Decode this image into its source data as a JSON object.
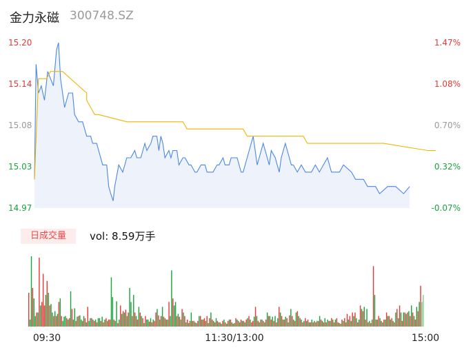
{
  "header": {
    "stock_name": "金力永磁",
    "stock_code": "300748.SZ"
  },
  "volume_panel": {
    "tag_label": "日成交量",
    "volume_text": "vol: 8.59万手"
  },
  "colors": {
    "price_line": "#4a86e8",
    "avg_line": "#f0b400",
    "up": "#e53935",
    "down": "#1aa33c",
    "neutral": "#999999",
    "area_fill": "#eef3fb"
  },
  "chart_data": [
    {
      "type": "line",
      "title": "",
      "y_left_ticks": [
        "15.20",
        "15.14",
        "15.08",
        "15.03",
        "14.97"
      ],
      "y_right_ticks": [
        "1.47%",
        "1.08%",
        "0.70%",
        "0.32%",
        "-0.07%"
      ],
      "x_ticks": [
        "09:30",
        "11:30/13:00",
        "15:00"
      ],
      "ylim": [
        14.97,
        15.2
      ],
      "series": [
        {
          "values": [
            15.01,
            15.17,
            15.13,
            15.14,
            15.12,
            15.16,
            15.15,
            15.14,
            15.19,
            15.2,
            15.15,
            15.11,
            15.13,
            15.13,
            15.1,
            15.09,
            15.09,
            15.07,
            15.07,
            15.06,
            15.06,
            15.05,
            15.03,
            15.03,
            15.0,
            14.99,
            14.98,
            15.0,
            15.03,
            15.02,
            15.04,
            15.04,
            15.05,
            15.04,
            15.04,
            15.06,
            15.05,
            15.06,
            15.07,
            15.07,
            15.05,
            15.07,
            15.06,
            15.04,
            15.05,
            15.04,
            15.05,
            15.05,
            15.03,
            15.04,
            15.04,
            15.03,
            15.03,
            15.02,
            15.02,
            15.03,
            15.03,
            15.02,
            15.02,
            15.02,
            15.03,
            15.03,
            15.04,
            15.03,
            15.03,
            15.04,
            15.04,
            15.04,
            15.03,
            15.02,
            15.02,
            15.06,
            15.07,
            15.05,
            15.03,
            15.04,
            15.06,
            15.04,
            15.03,
            15.05,
            15.04,
            15.02,
            15.04,
            15.06,
            15.05,
            15.03,
            15.03,
            15.02,
            15.03,
            15.02,
            15.02,
            15.02,
            15.03,
            15.02,
            15.03,
            15.04,
            15.02,
            15.02,
            15.02,
            15.03,
            15.02,
            15.01,
            15.01,
            15.01,
            15.0,
            15.0,
            14.99,
            15.0,
            15.0,
            14.99,
            15.0
          ],
          "x_frac": [
            0,
            0.004,
            0.01,
            0.017,
            0.025,
            0.033,
            0.04,
            0.047,
            0.055,
            0.06,
            0.065,
            0.075,
            0.085,
            0.095,
            0.1,
            0.11,
            0.12,
            0.13,
            0.14,
            0.145,
            0.155,
            0.16,
            0.17,
            0.18,
            0.185,
            0.19,
            0.196,
            0.2,
            0.21,
            0.22,
            0.23,
            0.24,
            0.25,
            0.255,
            0.265,
            0.275,
            0.28,
            0.29,
            0.295,
            0.305,
            0.31,
            0.315,
            0.32,
            0.325,
            0.335,
            0.34,
            0.345,
            0.355,
            0.36,
            0.37,
            0.375,
            0.385,
            0.39,
            0.4,
            0.405,
            0.415,
            0.425,
            0.43,
            0.44,
            0.445,
            0.455,
            0.46,
            0.47,
            0.475,
            0.485,
            0.49,
            0.5,
            0.505,
            0.51,
            0.515,
            0.52,
            0.54,
            0.545,
            0.55,
            0.555,
            0.56,
            0.57,
            0.58,
            0.585,
            0.59,
            0.6,
            0.61,
            0.615,
            0.625,
            0.63,
            0.64,
            0.645,
            0.655,
            0.665,
            0.675,
            0.68,
            0.69,
            0.7,
            0.71,
            0.72,
            0.73,
            0.74,
            0.75,
            0.76,
            0.77,
            0.79,
            0.8,
            0.81,
            0.82,
            0.83,
            0.85,
            0.86,
            0.88,
            0.9,
            0.92,
            0.935
          ]
        },
        {
          "values": [
            15.01,
            15.15,
            15.15,
            15.16,
            15.16,
            15.14,
            15.13,
            15.12,
            15.11,
            15.1,
            15.1,
            15.09,
            15.09,
            15.09,
            15.08,
            15.08,
            15.07,
            15.07,
            15.07,
            15.06,
            15.06,
            15.06,
            15.05,
            15.05
          ],
          "x_frac": [
            0,
            0.01,
            0.03,
            0.04,
            0.07,
            0.11,
            0.13,
            0.13,
            0.14,
            0.15,
            0.16,
            0.23,
            0.24,
            0.37,
            0.38,
            0.52,
            0.53,
            0.61,
            0.67,
            0.68,
            0.86,
            0.87,
            0.98,
            1.0
          ]
        }
      ]
    },
    {
      "type": "bar",
      "title": "",
      "ylim": [
        0,
        100
      ],
      "values": [
        48,
        10,
        100,
        55,
        40,
        15,
        20,
        20,
        98,
        30,
        35,
        75,
        30,
        45,
        65,
        48,
        30,
        32,
        20,
        15,
        22,
        15,
        18,
        35,
        40,
        15,
        8,
        14,
        15,
        12,
        10,
        12,
        50,
        25,
        10,
        26,
        8,
        14,
        15,
        16,
        10,
        8,
        15,
        12,
        6,
        28,
        8,
        12,
        12,
        10,
        8,
        10,
        6,
        12,
        12,
        8,
        14,
        6,
        10,
        12,
        8,
        10,
        10,
        70,
        42,
        10,
        8,
        36,
        5,
        10,
        30,
        18,
        22,
        20,
        24,
        15,
        20,
        55,
        35,
        15,
        45,
        20,
        15,
        10,
        28,
        20,
        15,
        12,
        5,
        15,
        10,
        10,
        7,
        12,
        6,
        10,
        8,
        20,
        25,
        16,
        10,
        15,
        28,
        14,
        12,
        10,
        10,
        35,
        15,
        80,
        40,
        30,
        35,
        15,
        18,
        14,
        10,
        25,
        20,
        15,
        6,
        10,
        5,
        8,
        20,
        8,
        8,
        6,
        5,
        8,
        15,
        15,
        10,
        10,
        12,
        8,
        15,
        5,
        12,
        20,
        10,
        8,
        6,
        12,
        8,
        6,
        6,
        4,
        8,
        10,
        6,
        4,
        8,
        10,
        10,
        6,
        4,
        5,
        12,
        10,
        8,
        6,
        10,
        8,
        8,
        6,
        10,
        12,
        15,
        10,
        6,
        8,
        14,
        28,
        15,
        8,
        6,
        10,
        10,
        8,
        6,
        10,
        20,
        15,
        15,
        10,
        14,
        8,
        15,
        6,
        12,
        28,
        20,
        15,
        10,
        10,
        14,
        12,
        6,
        16,
        25,
        15,
        10,
        8,
        20,
        22,
        15,
        12,
        10,
        6,
        8,
        12,
        8,
        10,
        6,
        6,
        10,
        6,
        8,
        6,
        8,
        8,
        15,
        10,
        8,
        6,
        12,
        6,
        10,
        8,
        8,
        12,
        10,
        6,
        10,
        12,
        6,
        5,
        4,
        10,
        8,
        12,
        6,
        18,
        10,
        15,
        8,
        20,
        15,
        20,
        12,
        6,
        10,
        30,
        25,
        22,
        28,
        10,
        25,
        6,
        8,
        5,
        10,
        86,
        45,
        10,
        10,
        15,
        12,
        8,
        6,
        10,
        10,
        20,
        15,
        15,
        10,
        12,
        8,
        6,
        20,
        25,
        12,
        30,
        20,
        8,
        20,
        20,
        18,
        20,
        22,
        15,
        30,
        20,
        15,
        10,
        28,
        22,
        35,
        58,
        35,
        45
      ],
      "colors": [
        "u",
        "d",
        "d",
        "u",
        "d",
        "d",
        "u",
        "d",
        "u",
        "d",
        "u",
        "u",
        "u",
        "d",
        "u",
        "d",
        "u",
        "d",
        "d",
        "u",
        "d",
        "u",
        "d",
        "u",
        "d",
        "u",
        "d",
        "d",
        "d",
        "u",
        "d",
        "u",
        "d",
        "u",
        "d",
        "d",
        "u",
        "d",
        "u",
        "d",
        "d",
        "u",
        "d",
        "u",
        "d",
        "u",
        "d",
        "d",
        "u",
        "d",
        "u",
        "d",
        "u",
        "d",
        "d",
        "u",
        "d",
        "u",
        "d",
        "u",
        "d",
        "u",
        "u",
        "d",
        "d",
        "u",
        "d",
        "d",
        "u",
        "d",
        "u",
        "d",
        "u",
        "d",
        "u",
        "d",
        "u",
        "d",
        "d",
        "u",
        "d",
        "u",
        "d",
        "u",
        "d",
        "u",
        "d",
        "u",
        "d",
        "u",
        "d",
        "d",
        "u",
        "d",
        "u",
        "d",
        "u",
        "u",
        "d",
        "u",
        "d",
        "u",
        "d",
        "u",
        "d",
        "u",
        "d",
        "u",
        "d",
        "d",
        "u",
        "d",
        "d",
        "u",
        "d",
        "u",
        "d",
        "u",
        "d",
        "u",
        "d",
        "u",
        "d",
        "u",
        "d",
        "u",
        "d",
        "u",
        "d",
        "u",
        "d",
        "u",
        "d",
        "u",
        "u",
        "d",
        "u",
        "d",
        "u",
        "d",
        "u",
        "d",
        "u",
        "d",
        "u",
        "d",
        "u",
        "d",
        "u",
        "d",
        "u",
        "d",
        "u",
        "d",
        "u",
        "d",
        "u",
        "d",
        "u",
        "d",
        "u",
        "d",
        "u",
        "d",
        "u",
        "d",
        "u",
        "d",
        "u",
        "d",
        "u",
        "u",
        "d",
        "u",
        "d",
        "u",
        "d",
        "u",
        "d",
        "u",
        "d",
        "u",
        "d",
        "u",
        "d",
        "u",
        "d",
        "u",
        "d",
        "u",
        "d",
        "u",
        "d",
        "u",
        "d",
        "u",
        "d",
        "u",
        "d",
        "u",
        "d",
        "u",
        "d",
        "u",
        "d",
        "u",
        "d",
        "u",
        "d",
        "u",
        "d",
        "u",
        "d",
        "u",
        "d",
        "u",
        "d",
        "u",
        "d",
        "u",
        "d",
        "u",
        "d",
        "u",
        "d",
        "u",
        "d",
        "u",
        "d",
        "u",
        "d",
        "u",
        "d",
        "u",
        "d",
        "u",
        "d",
        "u",
        "d",
        "u",
        "d",
        "u",
        "d",
        "u",
        "d",
        "u",
        "d",
        "u",
        "d",
        "u",
        "d",
        "u",
        "d",
        "u",
        "d",
        "u",
        "d",
        "u",
        "d",
        "u",
        "d",
        "u",
        "d",
        "u",
        "d",
        "u",
        "d",
        "u",
        "d",
        "u",
        "d",
        "u",
        "d",
        "u",
        "d",
        "u",
        "d",
        "u",
        "d",
        "u",
        "d",
        "u",
        "d",
        "u",
        "d",
        "u",
        "d",
        "u",
        "d",
        "u",
        "d",
        "u",
        "d",
        "u",
        "d",
        "u",
        "d",
        "u",
        "d",
        "u",
        "n"
      ]
    }
  ]
}
